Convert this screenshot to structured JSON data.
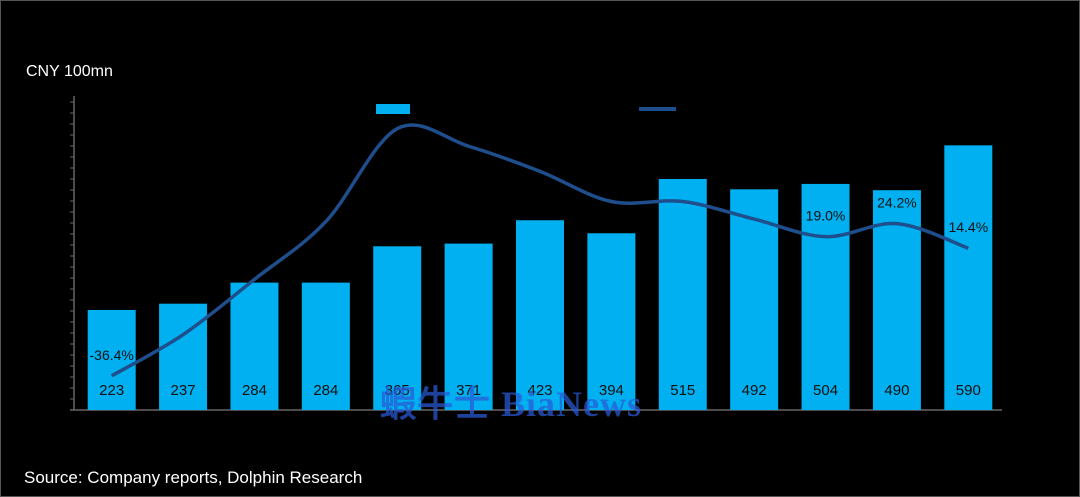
{
  "chart_data": {
    "type": "bar",
    "ylabel": "CNY 100mn",
    "categories": [
      "",
      "",
      "",
      "",
      "",
      "",
      "",
      "",
      "",
      "",
      "",
      "",
      ""
    ],
    "series": [
      {
        "values": [
          223,
          237,
          284,
          284,
          365,
          371,
          423,
          394,
          515,
          492,
          504,
          490,
          590
        ],
        "labels": [
          "223",
          "237",
          "284",
          "284",
          "365",
          "371",
          "423",
          "394",
          "515",
          "492",
          "504",
          "490",
          "590"
        ]
      },
      {
        "type": "line",
        "values": [
          -36.4,
          -20,
          2,
          25,
          62,
          55,
          45,
          33,
          33,
          26,
          19.0,
          24.2,
          14.4
        ],
        "labels": [
          "-36.4%",
          "",
          "",
          "",
          "",
          "",
          "",
          "",
          "",
          "",
          "19.0%",
          "24.2%",
          "14.4%"
        ]
      }
    ],
    "ylim": [
      0,
      700
    ],
    "y2lim": [
      -50,
      75
    ],
    "colors": {
      "bar": "#00b0f0",
      "line": "#1f4e8c"
    }
  },
  "source": "Source: Company reports, Dolphin Research",
  "watermark": "蝦牛士 BiaNews"
}
